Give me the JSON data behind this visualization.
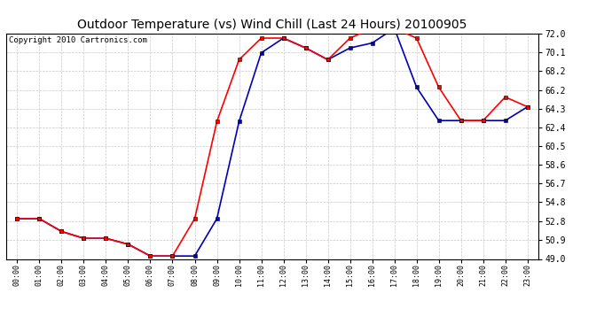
{
  "title": "Outdoor Temperature (vs) Wind Chill (Last 24 Hours) 20100905",
  "copyright": "Copyright 2010 Cartronics.com",
  "x_labels": [
    "00:00",
    "01:00",
    "02:00",
    "03:00",
    "04:00",
    "05:00",
    "06:00",
    "07:00",
    "08:00",
    "09:00",
    "10:00",
    "11:00",
    "12:00",
    "13:00",
    "14:00",
    "15:00",
    "16:00",
    "17:00",
    "18:00",
    "19:00",
    "20:00",
    "21:00",
    "22:00",
    "23:00"
  ],
  "temp_data": [
    53.1,
    53.1,
    51.8,
    51.1,
    51.1,
    50.5,
    49.3,
    49.3,
    53.1,
    63.0,
    69.3,
    71.5,
    71.5,
    70.5,
    69.3,
    71.5,
    72.5,
    72.5,
    71.5,
    66.5,
    63.1,
    63.1,
    65.5,
    64.5
  ],
  "wind_chill_data": [
    53.1,
    53.1,
    51.8,
    51.1,
    51.1,
    50.5,
    49.3,
    49.3,
    49.3,
    53.1,
    63.0,
    70.0,
    71.5,
    70.5,
    69.3,
    70.5,
    71.0,
    72.5,
    66.5,
    63.1,
    63.1,
    63.1,
    63.1,
    64.5
  ],
  "ylim": [
    49.0,
    72.0
  ],
  "yticks": [
    49.0,
    50.9,
    52.8,
    54.8,
    56.7,
    58.6,
    60.5,
    62.4,
    64.3,
    66.2,
    68.2,
    70.1,
    72.0
  ],
  "temp_color": "#ff0000",
  "wind_chill_color": "#0000bb",
  "bg_color": "#ffffff",
  "grid_color": "#c8c8c8",
  "title_fontsize": 10,
  "copyright_fontsize": 6.5,
  "fig_width": 6.9,
  "fig_height": 3.75,
  "dpi": 100
}
